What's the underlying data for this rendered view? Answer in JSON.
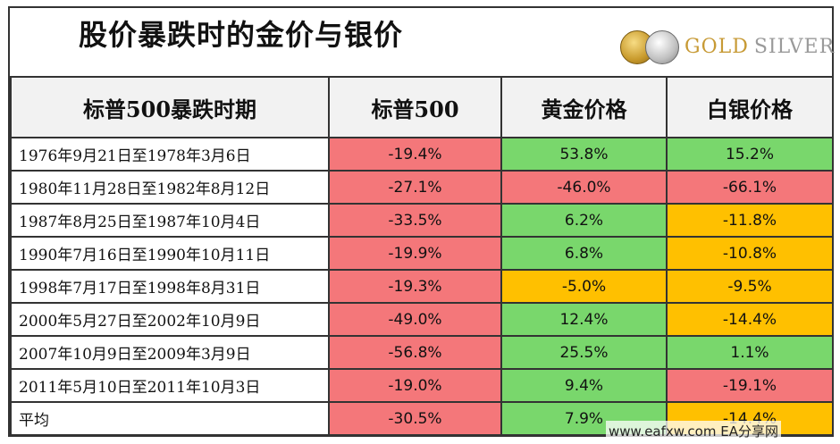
{
  "title": "股价暴跌时的金价与银价",
  "logo": {
    "gold": "GOLD",
    "silver": "SILVER"
  },
  "headers": [
    "标普500暴跌时期",
    "标普500",
    "黄金价格",
    "白银价格"
  ],
  "rows": [
    {
      "period": "1976年9月21日至1978年3月6日",
      "sp": "-19.4%",
      "gold": "53.8%",
      "silver": "15.2%",
      "sp_color": "red",
      "gold_color": "green",
      "silver_color": "green"
    },
    {
      "period": "1980年11月28日至1982年8月12日",
      "sp": "-27.1%",
      "gold": "-46.0%",
      "silver": "-66.1%",
      "sp_color": "red",
      "gold_color": "red",
      "silver_color": "red"
    },
    {
      "period": "1987年8月25日至1987年10月4日",
      "sp": "-33.5%",
      "gold": "6.2%",
      "silver": "-11.8%",
      "sp_color": "red",
      "gold_color": "green",
      "silver_color": "orange"
    },
    {
      "period": "1990年7月16日至1990年10月11日",
      "sp": "-19.9%",
      "gold": "6.8%",
      "silver": "-10.8%",
      "sp_color": "red",
      "gold_color": "green",
      "silver_color": "orange"
    },
    {
      "period": "1998年7月17日至1998年8月31日",
      "sp": "-19.3%",
      "gold": "-5.0%",
      "silver": "-9.5%",
      "sp_color": "red",
      "gold_color": "orange",
      "silver_color": "orange"
    },
    {
      "period": "2000年5月27日至2002年10月9日",
      "sp": "-49.0%",
      "gold": "12.4%",
      "silver": "-14.4%",
      "sp_color": "red",
      "gold_color": "green",
      "silver_color": "orange"
    },
    {
      "period": "2007年10月9日至2009年3月9日",
      "sp": "-56.8%",
      "gold": "25.5%",
      "silver": "1.1%",
      "sp_color": "red",
      "gold_color": "green",
      "silver_color": "green"
    },
    {
      "period": "2011年5月10日至2011年10月3日",
      "sp": "-19.0%",
      "gold": "9.4%",
      "silver": "-19.1%",
      "sp_color": "red",
      "gold_color": "green",
      "silver_color": "red"
    },
    {
      "period": "平均",
      "sp": "-30.5%",
      "gold": "7.9%",
      "silver": "-14.4%",
      "sp_color": "red",
      "gold_color": "green",
      "silver_color": "orange"
    }
  ],
  "watermark": "www.eafxw.com  EA分享网"
}
